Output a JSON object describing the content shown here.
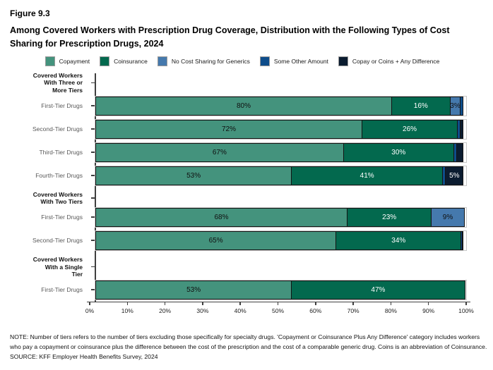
{
  "figure": {
    "number": "Figure 9.3",
    "title": "Among Covered Workers with Prescription Drug Coverage, Distribution with the Following Types of Cost Sharing for Prescription Drugs, 2024"
  },
  "legend": [
    {
      "key": "copayment",
      "label": "Copayment"
    },
    {
      "key": "coinsurance",
      "label": "Coinsurance"
    },
    {
      "key": "no_cost_sharing",
      "label": "No Cost Sharing for Generics"
    },
    {
      "key": "some_other",
      "label": "Some Other Amount"
    },
    {
      "key": "copay_coins_diff",
      "label": "Copay or Coins + Any Difference"
    }
  ],
  "chart_data": {
    "type": "bar",
    "variant": "horizontal-stacked",
    "x_axis": {
      "min": 0,
      "max": 100,
      "ticks": [
        "0%",
        "10%",
        "20%",
        "30%",
        "40%",
        "50%",
        "60%",
        "70%",
        "80%",
        "90%",
        "100%"
      ]
    },
    "colors": {
      "copayment": "#44937D",
      "coinsurance": "#03694E",
      "no_cost_sharing": "#4579AD",
      "some_other": "#0E4D8B",
      "copay_coins_diff": "#0B1C30"
    },
    "label_text_colors": {
      "copayment": "#101010",
      "coinsurance": "#ffffff",
      "no_cost_sharing": "#101010",
      "some_other": "#ffffff",
      "copay_coins_diff": "#ffffff"
    },
    "groups": [
      {
        "header": "Covered Workers\nWith Three or\nMore Tiers",
        "rows": [
          {
            "label": "First-Tier Drugs",
            "segments": [
              {
                "key": "copayment",
                "value": 80,
                "label": "80%"
              },
              {
                "key": "coinsurance",
                "value": 16,
                "label": "16%"
              },
              {
                "key": "no_cost_sharing",
                "value": 3,
                "label": "3%"
              },
              {
                "key": "some_other",
                "value": 1,
                "label": ""
              }
            ]
          },
          {
            "label": "Second-Tier Drugs",
            "segments": [
              {
                "key": "copayment",
                "value": 72,
                "label": "72%"
              },
              {
                "key": "coinsurance",
                "value": 26,
                "label": "26%"
              },
              {
                "key": "some_other",
                "value": 1,
                "label": ""
              },
              {
                "key": "copay_coins_diff",
                "value": 1,
                "label": ""
              }
            ]
          },
          {
            "label": "Third-Tier Drugs",
            "segments": [
              {
                "key": "copayment",
                "value": 67,
                "label": "67%"
              },
              {
                "key": "coinsurance",
                "value": 30,
                "label": "30%"
              },
              {
                "key": "some_other",
                "value": 1,
                "label": ""
              },
              {
                "key": "copay_coins_diff",
                "value": 2,
                "label": ""
              }
            ]
          },
          {
            "label": "Fourth-Tier Drugs",
            "segments": [
              {
                "key": "copayment",
                "value": 53,
                "label": "53%"
              },
              {
                "key": "coinsurance",
                "value": 41,
                "label": "41%"
              },
              {
                "key": "some_other",
                "value": 1,
                "label": ""
              },
              {
                "key": "copay_coins_diff",
                "value": 5,
                "label": "5%"
              }
            ]
          }
        ]
      },
      {
        "header": "Covered Workers\nWith Two Tiers",
        "rows": [
          {
            "label": "First-Tier Drugs",
            "segments": [
              {
                "key": "copayment",
                "value": 68,
                "label": "68%"
              },
              {
                "key": "coinsurance",
                "value": 23,
                "label": "23%"
              },
              {
                "key": "no_cost_sharing",
                "value": 9,
                "label": "9%"
              }
            ]
          },
          {
            "label": "Second-Tier Drugs",
            "segments": [
              {
                "key": "copayment",
                "value": 65,
                "label": "65%"
              },
              {
                "key": "coinsurance",
                "value": 34,
                "label": "34%"
              },
              {
                "key": "some_other",
                "value": 0.5,
                "label": ""
              },
              {
                "key": "copay_coins_diff",
                "value": 0.5,
                "label": ""
              }
            ]
          }
        ]
      },
      {
        "header": "Covered Workers\nWith a Single\nTier",
        "rows": [
          {
            "label": "First-Tier Drugs",
            "segments": [
              {
                "key": "copayment",
                "value": 53,
                "label": "53%"
              },
              {
                "key": "coinsurance",
                "value": 47,
                "label": "47%"
              }
            ]
          }
        ]
      }
    ]
  },
  "notes": {
    "note": "NOTE: Number of tiers refers to the number of tiers excluding those specifically for specialty drugs. 'Copayment or Coinsurance Plus Any Difference' category includes workers who pay a copayment or coinsurance plus the difference between the cost of the prescription and the cost of a comparable generic drug.  Coins is an abbreviation of Coinsurance.",
    "source": "SOURCE: KFF Employer Health Benefits Survey, 2024"
  }
}
